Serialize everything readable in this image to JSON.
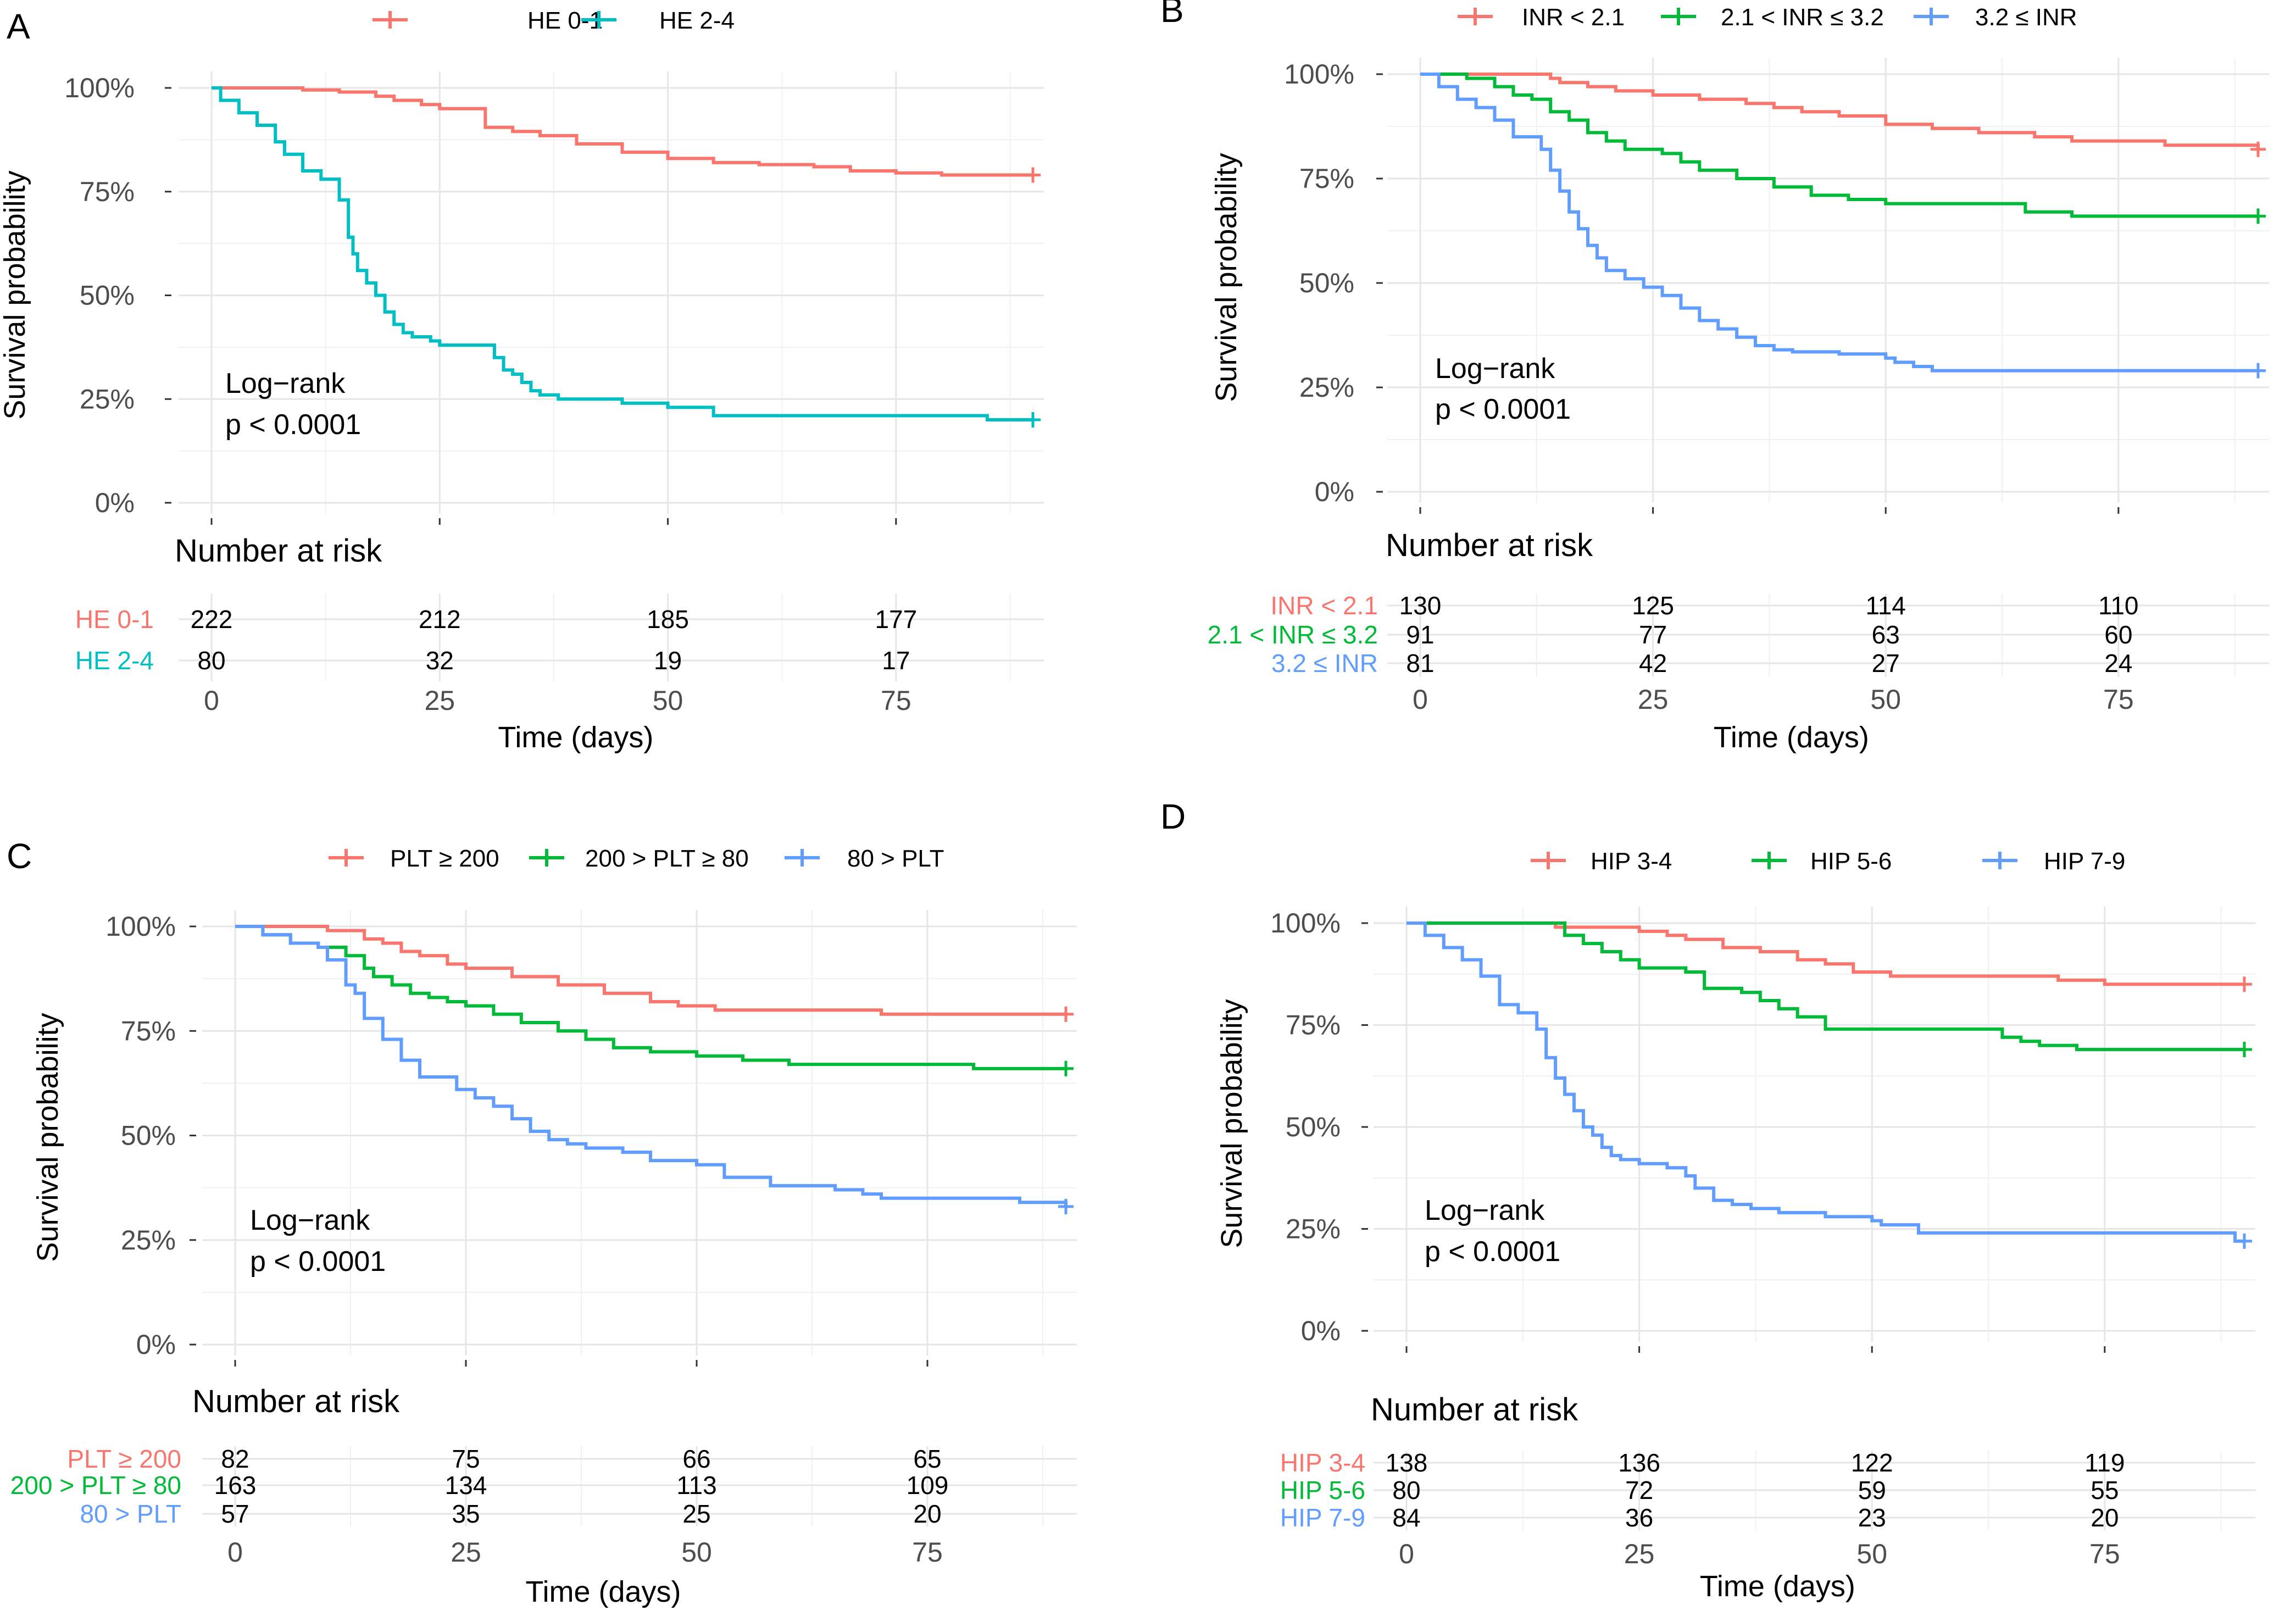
{
  "colors": {
    "red": "#F8766D",
    "teal": "#00BFC4",
    "green": "#00BA38",
    "blue": "#619CFF",
    "text": "#000000",
    "axis_text": "#4d4d4d"
  },
  "chart_data": [
    {
      "type": "line",
      "panel": "A",
      "title": "",
      "xlabel": "Time (days)",
      "ylabel": "Survival probability",
      "xlim": [
        0,
        90
      ],
      "ylim": [
        0,
        1
      ],
      "x_ticks": [
        0,
        25,
        50,
        75
      ],
      "x_tick_labels": [
        "0",
        "25",
        "50",
        "75"
      ],
      "y_ticks": [
        0,
        0.25,
        0.5,
        0.75,
        1
      ],
      "y_tick_labels": [
        "0%",
        "25%",
        "50%",
        "75%",
        "100%"
      ],
      "legend": [
        "HE 0-1",
        "HE 2-4"
      ],
      "annotation": [
        "Log−rank",
        "p < 0.0001"
      ],
      "risk_table_title": "Number at risk",
      "series": [
        {
          "name": "HE 0-1",
          "color": "#F8766D",
          "x": [
            0,
            10,
            14,
            18,
            20,
            23,
            25,
            30,
            33,
            36,
            40,
            45,
            50,
            55,
            60,
            66,
            70,
            75,
            80,
            90
          ],
          "y": [
            1.0,
            0.995,
            0.99,
            0.98,
            0.97,
            0.96,
            0.95,
            0.905,
            0.895,
            0.885,
            0.865,
            0.845,
            0.83,
            0.82,
            0.815,
            0.81,
            0.8,
            0.795,
            0.79,
            0.79
          ],
          "risk": [
            222,
            212,
            185,
            177
          ]
        },
        {
          "name": "HE 2-4",
          "color": "#00BFC4",
          "x": [
            0,
            1,
            3,
            5,
            7,
            8,
            10,
            12,
            14,
            15,
            15.5,
            16,
            17,
            18,
            19,
            20,
            21,
            22,
            24,
            25,
            31,
            32,
            33,
            34,
            35,
            36,
            38,
            40,
            45,
            50,
            55,
            85,
            90
          ],
          "y": [
            1.0,
            0.97,
            0.94,
            0.91,
            0.87,
            0.84,
            0.8,
            0.78,
            0.73,
            0.64,
            0.6,
            0.56,
            0.53,
            0.5,
            0.46,
            0.43,
            0.41,
            0.4,
            0.39,
            0.38,
            0.35,
            0.32,
            0.31,
            0.29,
            0.27,
            0.26,
            0.25,
            0.25,
            0.24,
            0.23,
            0.21,
            0.2,
            0.2
          ],
          "risk": [
            80,
            32,
            19,
            17
          ]
        }
      ]
    },
    {
      "type": "line",
      "panel": "B",
      "title": "",
      "xlabel": "Time (days)",
      "ylabel": "Survival probability",
      "xlim": [
        0,
        90
      ],
      "ylim": [
        0,
        1
      ],
      "x_ticks": [
        0,
        25,
        50,
        75
      ],
      "x_tick_labels": [
        "0",
        "25",
        "50",
        "75"
      ],
      "y_ticks": [
        0,
        0.25,
        0.5,
        0.75,
        1
      ],
      "y_tick_labels": [
        "0%",
        "25%",
        "50%",
        "75%",
        "100%"
      ],
      "legend": [
        "INR < 2.1",
        "2.1 < INR ≤ 3.2",
        "3.2 ≤ INR"
      ],
      "annotation": [
        "Log−rank",
        "p < 0.0001"
      ],
      "risk_table_title": "Number at risk",
      "series": [
        {
          "name": "INR < 2.1",
          "color": "#F8766D",
          "x": [
            0,
            14,
            15,
            18,
            21,
            25,
            30,
            35,
            38,
            41,
            45,
            50,
            55,
            60,
            66,
            70,
            80,
            90
          ],
          "y": [
            1.0,
            0.99,
            0.98,
            0.97,
            0.96,
            0.95,
            0.94,
            0.93,
            0.92,
            0.91,
            0.9,
            0.88,
            0.87,
            0.86,
            0.85,
            0.84,
            0.83,
            0.82
          ],
          "risk": [
            130,
            125,
            114,
            110
          ]
        },
        {
          "name": "2.1 < INR ≤ 3.2",
          "color": "#00BA38",
          "x": [
            0,
            5,
            8,
            10,
            12,
            14,
            16,
            18,
            20,
            22,
            26,
            28,
            30,
            34,
            38,
            42,
            46,
            50,
            60,
            65,
            70,
            90
          ],
          "y": [
            1.0,
            0.99,
            0.97,
            0.95,
            0.94,
            0.91,
            0.89,
            0.86,
            0.84,
            0.82,
            0.81,
            0.79,
            0.77,
            0.75,
            0.73,
            0.71,
            0.7,
            0.69,
            0.69,
            0.67,
            0.66,
            0.66
          ],
          "risk": [
            91,
            77,
            63,
            60
          ]
        },
        {
          "name": "3.2 ≤ INR",
          "color": "#619CFF",
          "x": [
            0,
            2,
            4,
            6,
            8,
            10,
            13,
            14,
            15,
            16,
            17,
            18,
            19,
            20,
            22,
            24,
            26,
            28,
            30,
            32,
            34,
            36,
            38,
            40,
            45,
            50,
            51,
            53,
            55,
            90
          ],
          "y": [
            1.0,
            0.97,
            0.94,
            0.92,
            0.89,
            0.85,
            0.82,
            0.77,
            0.72,
            0.67,
            0.63,
            0.59,
            0.56,
            0.53,
            0.51,
            0.49,
            0.47,
            0.44,
            0.41,
            0.39,
            0.37,
            0.35,
            0.34,
            0.335,
            0.33,
            0.32,
            0.31,
            0.3,
            0.29,
            0.29
          ],
          "risk": [
            81,
            42,
            27,
            24
          ]
        }
      ]
    },
    {
      "type": "line",
      "panel": "C",
      "title": "",
      "xlabel": "Time (days)",
      "ylabel": "Survival probability",
      "xlim": [
        0,
        90
      ],
      "ylim": [
        0,
        1
      ],
      "x_ticks": [
        0,
        25,
        50,
        75
      ],
      "x_tick_labels": [
        "0",
        "25",
        "50",
        "75"
      ],
      "y_ticks": [
        0,
        0.25,
        0.5,
        0.75,
        1
      ],
      "y_tick_labels": [
        "0%",
        "25%",
        "50%",
        "75%",
        "100%"
      ],
      "legend": [
        "PLT ≥ 200",
        "200 > PLT ≥ 80",
        "80 > PLT"
      ],
      "annotation": [
        "Log−rank",
        "p < 0.0001"
      ],
      "risk_table_title": "Number at risk",
      "series": [
        {
          "name": "PLT ≥ 200",
          "color": "#F8766D",
          "x": [
            0,
            5,
            10,
            14,
            16,
            18,
            20,
            23,
            25,
            30,
            35,
            40,
            45,
            48,
            52,
            70,
            90
          ],
          "y": [
            1.0,
            1.0,
            0.99,
            0.97,
            0.96,
            0.94,
            0.93,
            0.91,
            0.9,
            0.88,
            0.86,
            0.84,
            0.82,
            0.81,
            0.8,
            0.79,
            0.79
          ],
          "risk": [
            82,
            75,
            66,
            65
          ]
        },
        {
          "name": "200 > PLT ≥ 80",
          "color": "#00BA38",
          "x": [
            0,
            3,
            6,
            9,
            12,
            14,
            15,
            17,
            19,
            21,
            23,
            25,
            28,
            31,
            35,
            38,
            41,
            45,
            50,
            55,
            60,
            70,
            80,
            90
          ],
          "y": [
            1.0,
            0.98,
            0.96,
            0.95,
            0.93,
            0.9,
            0.88,
            0.86,
            0.84,
            0.83,
            0.82,
            0.81,
            0.79,
            0.77,
            0.75,
            0.73,
            0.71,
            0.7,
            0.69,
            0.68,
            0.67,
            0.67,
            0.66,
            0.66
          ],
          "risk": [
            163,
            134,
            113,
            109
          ]
        },
        {
          "name": "80 > PLT",
          "color": "#619CFF",
          "x": [
            0,
            3,
            6,
            9,
            10,
            12,
            13,
            14,
            16,
            18,
            20,
            24,
            26,
            28,
            30,
            32,
            34,
            36,
            38,
            42,
            45,
            50,
            53,
            58,
            65,
            68,
            70,
            85,
            90
          ],
          "y": [
            1.0,
            0.98,
            0.96,
            0.95,
            0.92,
            0.86,
            0.84,
            0.78,
            0.73,
            0.68,
            0.64,
            0.61,
            0.59,
            0.57,
            0.54,
            0.51,
            0.49,
            0.48,
            0.47,
            0.46,
            0.44,
            0.43,
            0.4,
            0.38,
            0.37,
            0.36,
            0.35,
            0.34,
            0.33
          ],
          "risk": [
            57,
            35,
            25,
            20
          ]
        }
      ]
    },
    {
      "type": "line",
      "panel": "D",
      "title": "",
      "xlabel": "Time (days)",
      "ylabel": "Survival probability",
      "xlim": [
        0,
        90
      ],
      "ylim": [
        0,
        1
      ],
      "x_ticks": [
        0,
        25,
        50,
        75
      ],
      "x_tick_labels": [
        "0",
        "25",
        "50",
        "75"
      ],
      "y_ticks": [
        0,
        0.25,
        0.5,
        0.75,
        1
      ],
      "y_tick_labels": [
        "0%",
        "25%",
        "50%",
        "75%",
        "100%"
      ],
      "legend": [
        "HIP 3-4",
        "HIP 5-6",
        "HIP 7-9"
      ],
      "annotation": [
        "Log−rank",
        "p < 0.0001"
      ],
      "risk_table_title": "Number at risk",
      "series": [
        {
          "name": "HIP 3-4",
          "color": "#F8766D",
          "x": [
            0,
            15,
            16,
            25,
            28,
            30,
            34,
            38,
            42,
            45,
            48,
            52,
            60,
            70,
            75,
            90
          ],
          "y": [
            1.0,
            1.0,
            0.99,
            0.98,
            0.97,
            0.96,
            0.94,
            0.93,
            0.91,
            0.9,
            0.88,
            0.87,
            0.87,
            0.86,
            0.85,
            0.85
          ],
          "risk": [
            138,
            136,
            122,
            119
          ]
        },
        {
          "name": "HIP 5-6",
          "color": "#00BA38",
          "x": [
            0,
            15,
            17,
            19,
            21,
            23,
            25,
            30,
            32,
            36,
            38,
            40,
            42,
            45,
            60,
            64,
            66,
            68,
            72,
            90
          ],
          "y": [
            1.0,
            1.0,
            0.97,
            0.95,
            0.93,
            0.91,
            0.89,
            0.88,
            0.84,
            0.83,
            0.81,
            0.79,
            0.77,
            0.74,
            0.74,
            0.72,
            0.71,
            0.7,
            0.69,
            0.69
          ],
          "risk": [
            80,
            72,
            59,
            55
          ]
        },
        {
          "name": "HIP 7-9",
          "color": "#619CFF",
          "x": [
            0,
            2,
            4,
            6,
            8,
            10,
            12,
            14,
            15,
            16,
            17,
            18,
            19,
            20,
            21,
            22,
            23,
            25,
            28,
            30,
            31,
            33,
            35,
            37,
            40,
            45,
            50,
            51,
            55,
            89,
            90
          ],
          "y": [
            1.0,
            0.97,
            0.94,
            0.91,
            0.87,
            0.8,
            0.78,
            0.74,
            0.67,
            0.62,
            0.58,
            0.54,
            0.5,
            0.48,
            0.45,
            0.43,
            0.42,
            0.41,
            0.4,
            0.38,
            0.35,
            0.32,
            0.31,
            0.3,
            0.29,
            0.28,
            0.27,
            0.26,
            0.24,
            0.22,
            0.22
          ],
          "risk": [
            84,
            36,
            23,
            20
          ]
        }
      ]
    }
  ]
}
